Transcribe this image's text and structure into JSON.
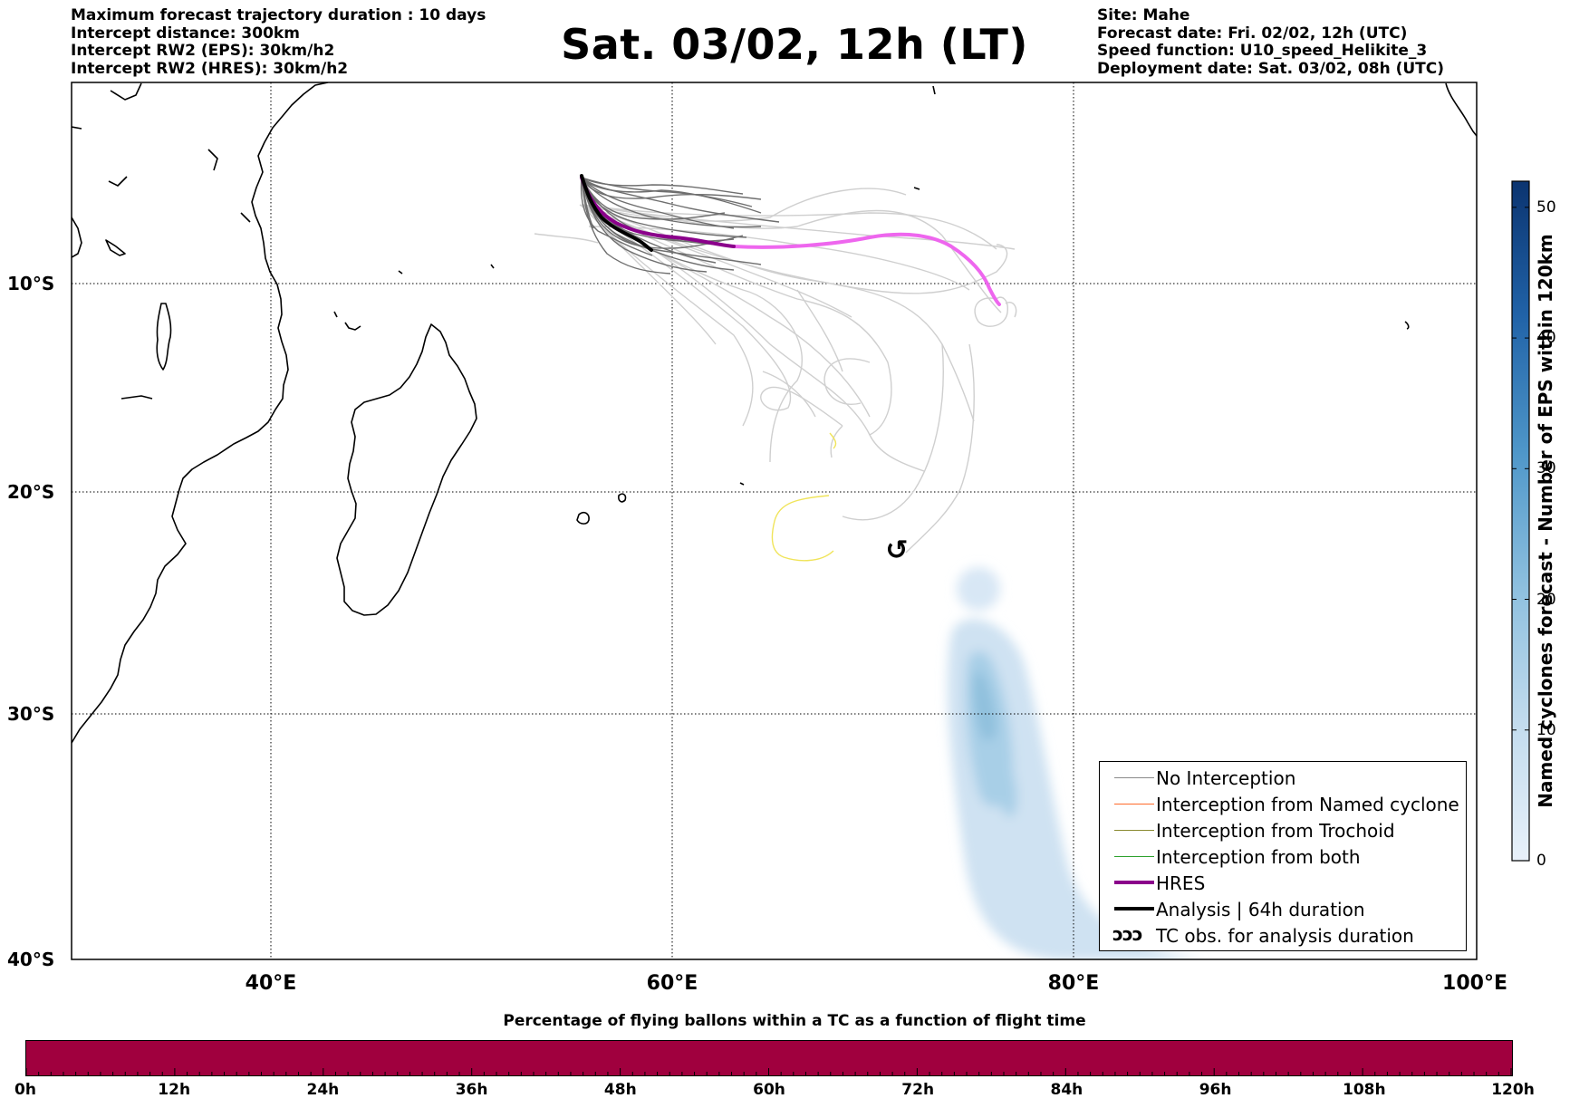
{
  "header": {
    "left_lines": [
      "Maximum forecast trajectory duration : 10 days",
      "Intercept distance: 300km",
      "Intercept RW2 (EPS):  30km/h2",
      "Intercept RW2 (HRES): 30km/h2"
    ],
    "title": "Sat. 03/02, 12h (LT)",
    "right_lines": [
      "Site: Mahe",
      "Forecast date: Fri. 02/02, 12h (UTC)",
      "Speed function: U10_speed_Helikite_3",
      "Deployment date: Sat. 03/02, 08h (UTC)"
    ]
  },
  "map": {
    "lon_range": [
      30,
      100
    ],
    "lat_range": [
      -40,
      -2
    ],
    "lat_labels": [
      "10°S",
      "20°S",
      "30°S",
      "40°S"
    ],
    "lon_labels": [
      "40°E",
      "60°E",
      "80°E",
      "100°E"
    ],
    "gridline_lons": [
      40,
      60,
      80
    ],
    "gridline_lats": [
      -10,
      -20,
      -30
    ],
    "tc_symbol": "↺",
    "colors": {
      "no_interception": "#8a8a8a",
      "named_cyclone": "#ff6a2a",
      "trochoid": "#8a8a30",
      "both": "#2aa02a",
      "hres": "#8b008b",
      "hres_forecast": "#ee66ee",
      "analysis": "#000000",
      "late_member": "#cfcfcf",
      "yellow_track": "#f0e45a",
      "density_light": "#cfe2f2",
      "density_dark": "#8fc0dd"
    }
  },
  "legend": {
    "items": [
      {
        "label": "No Interception",
        "color": "#8a8a8a",
        "width": 1.5,
        "symbol": ""
      },
      {
        "label": "Interception from Named cyclone",
        "color": "#ff6a2a",
        "width": 1.5,
        "symbol": ""
      },
      {
        "label": "Interception from Trochoid",
        "color": "#8a8a30",
        "width": 1.5,
        "symbol": ""
      },
      {
        "label": "Interception from both",
        "color": "#2aa02a",
        "width": 1.5,
        "symbol": ""
      },
      {
        "label": "HRES",
        "color": "#8b008b",
        "width": 4,
        "symbol": ""
      },
      {
        "label": "Analysis | 64h duration",
        "color": "#000000",
        "width": 4,
        "symbol": ""
      },
      {
        "label": "TC obs. for analysis duration",
        "color": "#000000",
        "width": 0,
        "symbol": "ↄↄↄ"
      }
    ]
  },
  "colorbar": {
    "label": "Named cyclones forecast - Number of EPS within 120km",
    "ticks": [
      "0",
      "10",
      "20",
      "30",
      "40",
      "50"
    ],
    "tick_values": [
      0,
      10,
      20,
      30,
      40,
      50
    ],
    "max": 52,
    "color_low": "#e8f1fa",
    "color_high": "#0b3470"
  },
  "timebar": {
    "title": "Percentage of flying ballons within a TC as a function of flight time",
    "labels": [
      "0h",
      "12h",
      "24h",
      "36h",
      "48h",
      "60h",
      "72h",
      "84h",
      "96h",
      "108h",
      "120h"
    ],
    "fill_fraction": 1.0,
    "color": "#a0003e"
  }
}
